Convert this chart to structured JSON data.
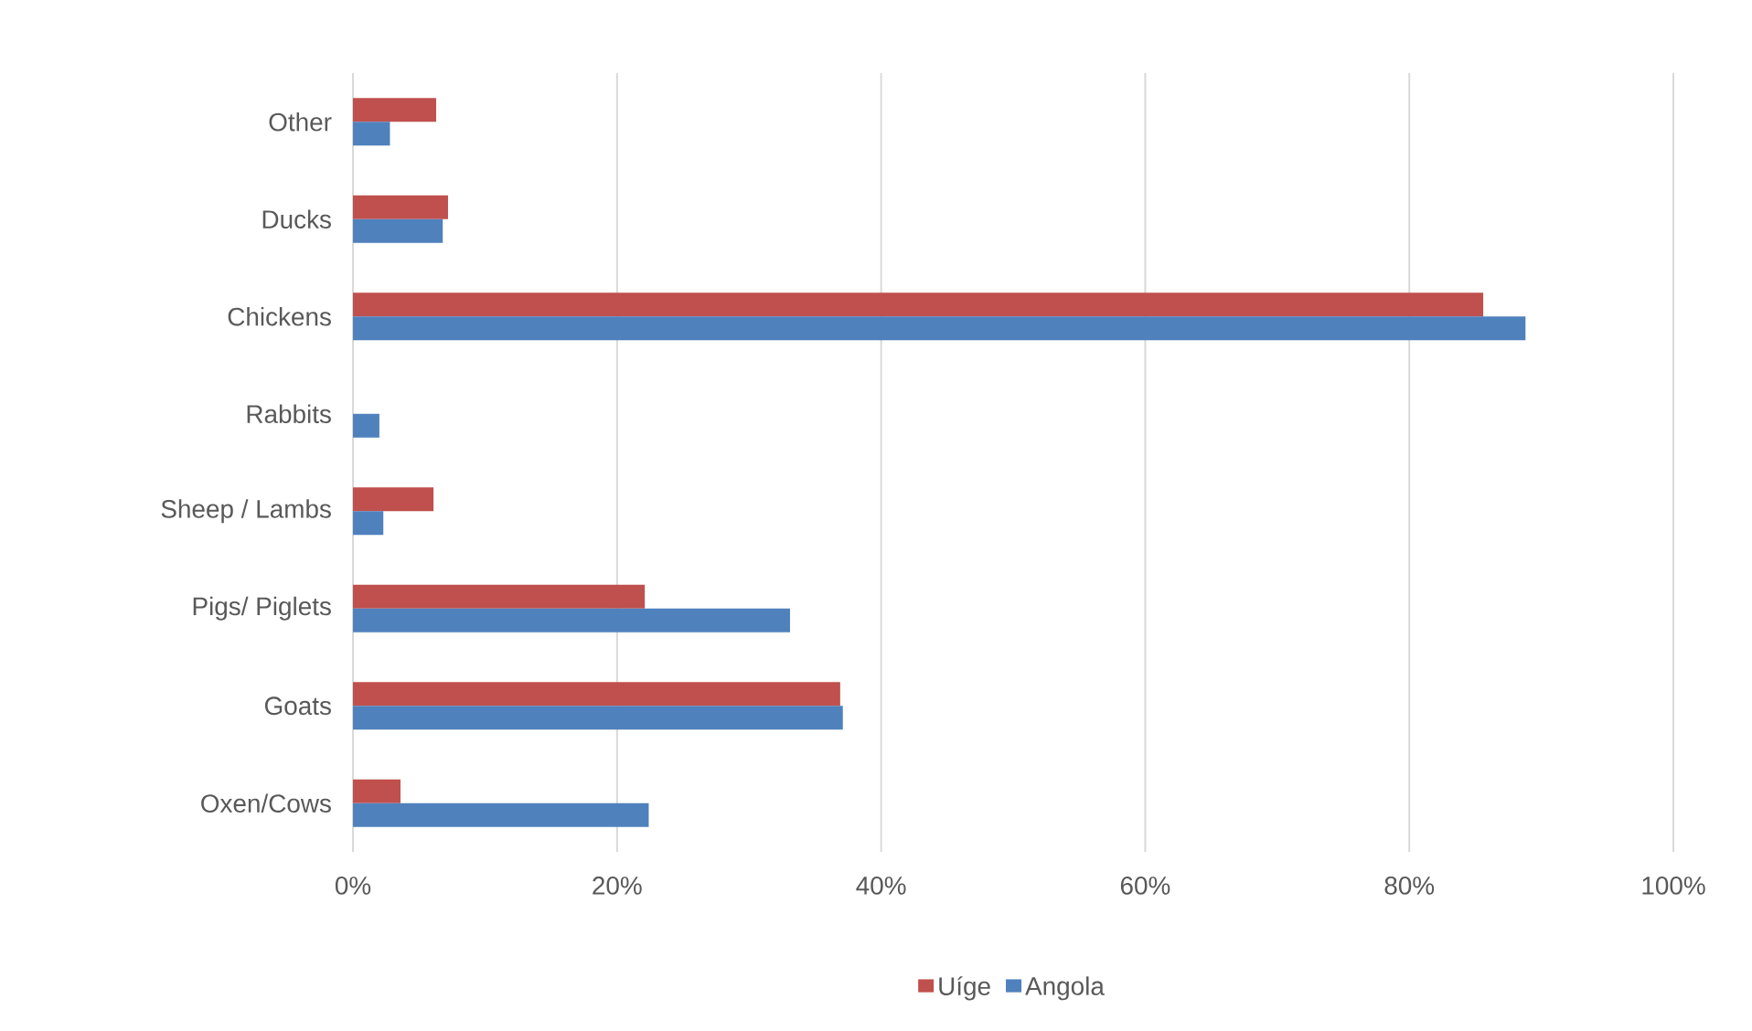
{
  "chart_data": {
    "type": "bar",
    "orientation": "horizontal",
    "categories": [
      "Other",
      "Ducks",
      "Chickens",
      "Rabbits",
      "Sheep / Lambs",
      "Pigs/ Piglets",
      "Goats",
      "Oxen/Cows"
    ],
    "series": [
      {
        "name": "Uíge",
        "color": "#c0504d",
        "values": [
          6.3,
          7.2,
          85.6,
          0,
          6.1,
          22.1,
          36.9,
          3.6
        ]
      },
      {
        "name": "Angola",
        "color": "#4f81bd",
        "values": [
          2.8,
          6.8,
          88.8,
          2.0,
          2.3,
          33.1,
          37.1,
          22.4
        ]
      }
    ],
    "xlim": [
      0,
      100
    ],
    "xticks": [
      {
        "value": 0,
        "label": "0%"
      },
      {
        "value": 20,
        "label": "20%"
      },
      {
        "value": 40,
        "label": "40%"
      },
      {
        "value": 60,
        "label": "60%"
      },
      {
        "value": 80,
        "label": "80%"
      },
      {
        "value": 100,
        "label": "100%"
      }
    ],
    "grid": "x",
    "legend": "bottom"
  }
}
